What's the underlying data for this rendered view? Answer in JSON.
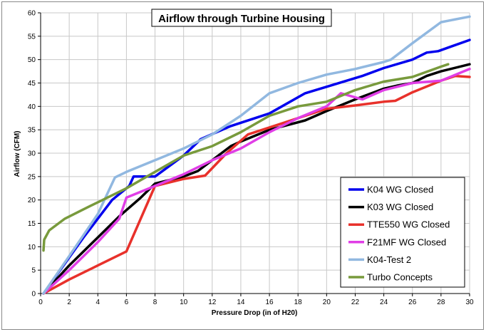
{
  "chart_data": {
    "type": "line",
    "title": "Airflow through Turbine Housing",
    "xlabel": "Pressure Drop (in of H20)",
    "ylabel": "Airflow (CFM)",
    "xlim": [
      0,
      30
    ],
    "ylim": [
      0,
      60
    ],
    "xticks": [
      0,
      2,
      4,
      6,
      8,
      10,
      12,
      14,
      16,
      18,
      20,
      22,
      24,
      26,
      28,
      30
    ],
    "yticks": [
      0,
      5,
      10,
      15,
      20,
      25,
      30,
      35,
      40,
      45,
      50,
      55,
      60
    ],
    "grid": true,
    "legend_position": "bottom-right",
    "series": [
      {
        "name": "K04 WG Closed",
        "color": "#0000ee",
        "points": [
          [
            0.2,
            0
          ],
          [
            3,
            12
          ],
          [
            5,
            20
          ],
          [
            6.2,
            23
          ],
          [
            6.5,
            25
          ],
          [
            8,
            25
          ],
          [
            10,
            29.5
          ],
          [
            11.2,
            33
          ],
          [
            13.3,
            35.8
          ],
          [
            16,
            38.5
          ],
          [
            18.5,
            42.8
          ],
          [
            20,
            44.2
          ],
          [
            22.5,
            46.5
          ],
          [
            24,
            48.2
          ],
          [
            26,
            50
          ],
          [
            27,
            51.5
          ],
          [
            27.8,
            51.8
          ],
          [
            30,
            54.2
          ]
        ]
      },
      {
        "name": "K03 WG Closed",
        "color": "#000000",
        "points": [
          [
            0.2,
            0
          ],
          [
            2,
            6
          ],
          [
            4,
            12
          ],
          [
            5.5,
            16.5
          ],
          [
            7,
            20.5
          ],
          [
            8,
            23.5
          ],
          [
            10,
            25
          ],
          [
            11,
            26.2
          ],
          [
            12,
            28.5
          ],
          [
            13.3,
            31.5
          ],
          [
            14,
            32.5
          ],
          [
            16,
            35
          ],
          [
            18.5,
            37
          ],
          [
            20,
            39
          ],
          [
            22,
            41.5
          ],
          [
            24,
            43.8
          ],
          [
            25,
            44.5
          ],
          [
            26,
            45
          ],
          [
            27,
            46.5
          ],
          [
            28,
            47.5
          ],
          [
            30,
            49
          ]
        ]
      },
      {
        "name": "TTE550 WG Closed",
        "color": "#e8312b",
        "points": [
          [
            0.2,
            0
          ],
          [
            2,
            3
          ],
          [
            4,
            6
          ],
          [
            6,
            9
          ],
          [
            8,
            23
          ],
          [
            10,
            24.5
          ],
          [
            11.5,
            25.2
          ],
          [
            13,
            30
          ],
          [
            14.5,
            34
          ],
          [
            16,
            35.5
          ],
          [
            18,
            37.5
          ],
          [
            20,
            39.5
          ],
          [
            22,
            40.2
          ],
          [
            24,
            41
          ],
          [
            24.8,
            41.2
          ],
          [
            26,
            43
          ],
          [
            28,
            45.5
          ],
          [
            29,
            46.5
          ],
          [
            30,
            46.3
          ]
        ]
      },
      {
        "name": "F21MF WG Closed",
        "color": "#e03ee6",
        "points": [
          [
            0.2,
            0
          ],
          [
            2,
            5
          ],
          [
            4,
            11
          ],
          [
            5.5,
            16
          ],
          [
            6,
            20.5
          ],
          [
            8,
            23
          ],
          [
            10,
            25.5
          ],
          [
            12,
            28.5
          ],
          [
            14,
            31
          ],
          [
            16,
            34.5
          ],
          [
            18,
            37.5
          ],
          [
            20,
            40
          ],
          [
            21,
            42.8
          ],
          [
            22.5,
            41.5
          ],
          [
            24,
            43.5
          ],
          [
            26,
            45
          ],
          [
            28,
            45.5
          ],
          [
            30,
            48
          ]
        ]
      },
      {
        "name": "K04-Test 2",
        "color": "#91b8e0",
        "points": [
          [
            0.2,
            0
          ],
          [
            2,
            8
          ],
          [
            4,
            17
          ],
          [
            5.2,
            24.8
          ],
          [
            6,
            26
          ],
          [
            8,
            28.5
          ],
          [
            10,
            31
          ],
          [
            12,
            34
          ],
          [
            14,
            38
          ],
          [
            16,
            42.8
          ],
          [
            18,
            45
          ],
          [
            20,
            46.8
          ],
          [
            22,
            48
          ],
          [
            24,
            49.5
          ],
          [
            24.5,
            50
          ],
          [
            26,
            53.5
          ],
          [
            28,
            58
          ],
          [
            30,
            59.2
          ]
        ]
      },
      {
        "name": "Turbo Concepts",
        "color": "#789a3c",
        "points": [
          [
            0.2,
            9.2
          ],
          [
            0.25,
            11.5
          ],
          [
            0.6,
            13.5
          ],
          [
            1.7,
            16
          ],
          [
            3,
            18
          ],
          [
            4,
            19.5
          ],
          [
            6,
            22.5
          ],
          [
            8,
            26
          ],
          [
            10,
            29.5
          ],
          [
            12,
            31.5
          ],
          [
            14,
            34.5
          ],
          [
            16,
            38
          ],
          [
            18,
            40
          ],
          [
            20,
            41
          ],
          [
            22,
            43.5
          ],
          [
            24,
            45.3
          ],
          [
            26,
            46.3
          ],
          [
            28,
            48.5
          ],
          [
            28.5,
            49
          ]
        ]
      }
    ]
  }
}
